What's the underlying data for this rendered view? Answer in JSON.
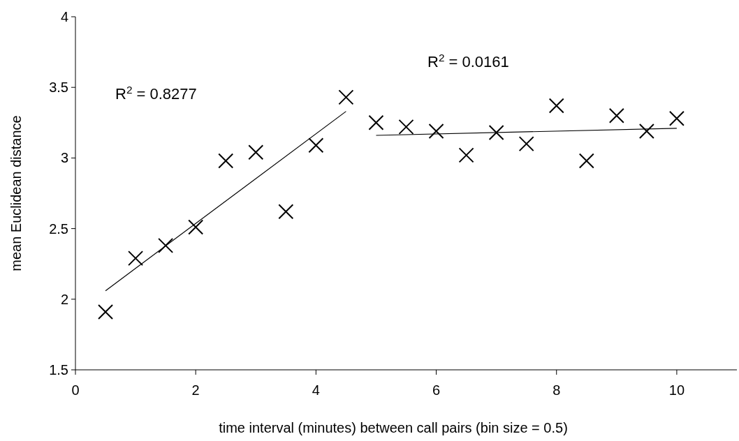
{
  "chart_data": {
    "type": "scatter",
    "xlabel": "time interval (minutes) between call pairs (bin size = 0.5)",
    "ylabel": "mean Euclidean distance",
    "xlim": [
      0,
      11
    ],
    "xticks": [
      0,
      2,
      4,
      6,
      8,
      10
    ],
    "ylim": [
      1.5,
      4
    ],
    "yticks": [
      1.5,
      2,
      2.5,
      3,
      3.5,
      4
    ],
    "grid": false,
    "marker": "cross",
    "annotations": [
      "R$^{2}$ = 0.8277",
      "R$^{2}$ = 0.0161"
    ],
    "series": [
      {
        "color": "#000000",
        "x": [
          0.5,
          1,
          1.5,
          2,
          2.5,
          3,
          3.5,
          4,
          4.5,
          5,
          5.5,
          6,
          6.5,
          7,
          7.5,
          8,
          8.5,
          9,
          9.5,
          10
        ],
        "values": [
          1.91,
          2.29,
          2.38,
          2.51,
          2.98,
          3.04,
          2.62,
          3.09,
          3.43,
          3.25,
          3.22,
          3.19,
          3.02,
          3.18,
          3.1,
          3.37,
          2.98,
          3.3,
          3.19,
          3.28
        ]
      },
      {
        "type": "line",
        "color": "#000000",
        "marker": "none",
        "x": [
          0.5,
          4.5
        ],
        "values": [
          2.06,
          3.33
        ]
      },
      {
        "type": "line",
        "color": "#000000",
        "marker": "none",
        "x": [
          5,
          10
        ],
        "values": [
          3.16,
          3.21
        ]
      }
    ]
  }
}
